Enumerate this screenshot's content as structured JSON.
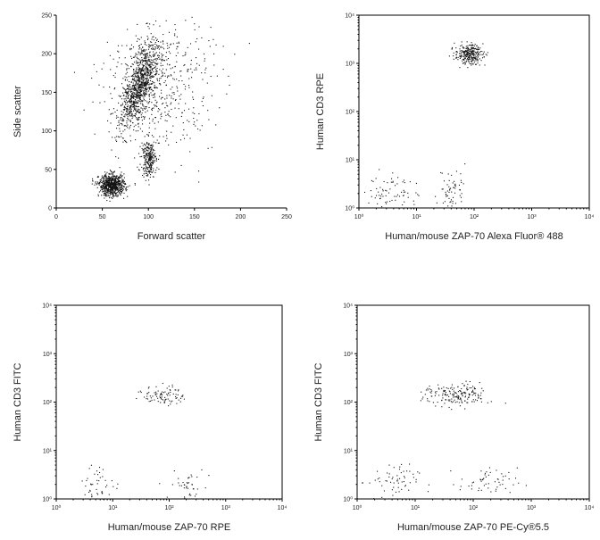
{
  "chart_data": [
    {
      "type": "scatter",
      "xlabel": "Forward scatter",
      "ylabel": "Side scatter",
      "xscale": "linear",
      "yscale": "linear",
      "xlim": [
        0,
        250
      ],
      "ylim": [
        0,
        250
      ],
      "xticks": [
        "0",
        "50",
        "100",
        "150",
        "200",
        "250"
      ],
      "yticks": [
        "0",
        "50",
        "100",
        "150",
        "200",
        "250"
      ],
      "clusters": [
        {
          "center": [
            90,
            160
          ],
          "spread": [
            8,
            28
          ],
          "n": 1000,
          "shape": "tilted"
        },
        {
          "center": [
            60,
            30
          ],
          "spread": [
            7,
            7
          ],
          "n": 700,
          "shape": "round"
        },
        {
          "center": [
            100,
            65
          ],
          "spread": [
            4,
            12
          ],
          "n": 250,
          "shape": "round"
        },
        {
          "center": [
            110,
            160
          ],
          "spread": [
            30,
            45
          ],
          "n": 500,
          "shape": "round"
        }
      ]
    },
    {
      "type": "scatter",
      "xlabel": "Human/mouse ZAP-70 Alexa Fluor® 488",
      "ylabel": "Human CD3 RPE",
      "xscale": "log",
      "yscale": "log",
      "xlim": [
        1,
        10000
      ],
      "ylim": [
        1,
        10000
      ],
      "xticks": [
        "10⁰",
        "10¹",
        "10²",
        "10³",
        "10⁴"
      ],
      "yticks": [
        "10⁰",
        "10¹",
        "10²",
        "10³",
        "10⁴"
      ],
      "clusters": [
        {
          "center": [
            1.9,
            3.2
          ],
          "spread": [
            0.12,
            0.1
          ],
          "n": 280,
          "shape": "round"
        },
        {
          "center": [
            0.6,
            0.35
          ],
          "spread": [
            0.22,
            0.2
          ],
          "n": 70,
          "shape": "round"
        },
        {
          "center": [
            1.6,
            0.4
          ],
          "spread": [
            0.12,
            0.22
          ],
          "n": 60,
          "shape": "round"
        }
      ]
    },
    {
      "type": "scatter",
      "xlabel": "Human/mouse ZAP-70 RPE",
      "ylabel": "Human CD3 FITC",
      "xscale": "log",
      "yscale": "log",
      "xlim": [
        1,
        10000
      ],
      "ylim": [
        1,
        10000
      ],
      "xticks": [
        "10⁰",
        "10¹",
        "10²",
        "10³",
        "10⁴"
      ],
      "yticks": [
        "10⁰",
        "10¹",
        "10²",
        "10³",
        "10⁴"
      ],
      "clusters": [
        {
          "center": [
            1.9,
            2.15
          ],
          "spread": [
            0.18,
            0.1
          ],
          "n": 90,
          "shape": "round"
        },
        {
          "center": [
            0.75,
            0.3
          ],
          "spread": [
            0.18,
            0.18
          ],
          "n": 45,
          "shape": "round"
        },
        {
          "center": [
            2.35,
            0.3
          ],
          "spread": [
            0.18,
            0.15
          ],
          "n": 40,
          "shape": "round"
        }
      ]
    },
    {
      "type": "scatter",
      "xlabel": "Human/mouse ZAP-70 PE-Cy®5.5",
      "ylabel": "Human CD3 FITC",
      "xscale": "log",
      "yscale": "log",
      "xlim": [
        1,
        10000
      ],
      "ylim": [
        1,
        10000
      ],
      "xticks": [
        "10⁰",
        "10¹",
        "10²",
        "10³",
        "10⁴"
      ],
      "yticks": [
        "10⁰",
        "10¹",
        "10²",
        "10³",
        "10⁴"
      ],
      "clusters": [
        {
          "center": [
            1.7,
            2.15
          ],
          "spread": [
            0.28,
            0.12
          ],
          "n": 180,
          "shape": "round"
        },
        {
          "center": [
            0.6,
            0.35
          ],
          "spread": [
            0.22,
            0.18
          ],
          "n": 60,
          "shape": "round"
        },
        {
          "center": [
            2.25,
            0.35
          ],
          "spread": [
            0.25,
            0.15
          ],
          "n": 55,
          "shape": "round"
        }
      ]
    }
  ]
}
